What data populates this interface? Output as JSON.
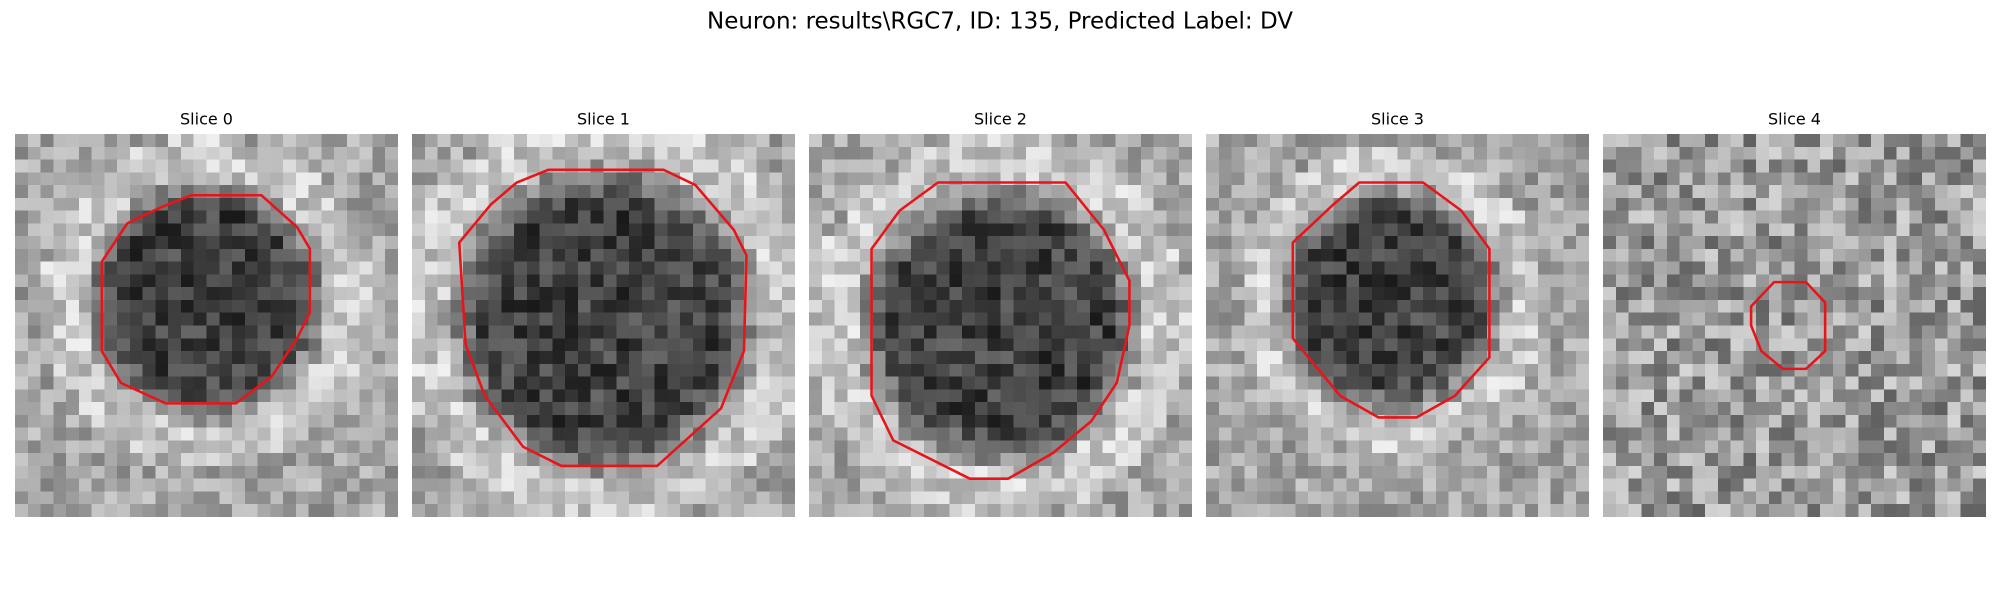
{
  "title": "Neuron: results\\RGC7, ID: 135, Predicted Label: DV",
  "panels": [
    {
      "title": "Slice 0"
    },
    {
      "title": "Slice 1"
    },
    {
      "title": "Slice 2"
    },
    {
      "title": "Slice 3"
    },
    {
      "title": "Slice 4"
    }
  ]
}
